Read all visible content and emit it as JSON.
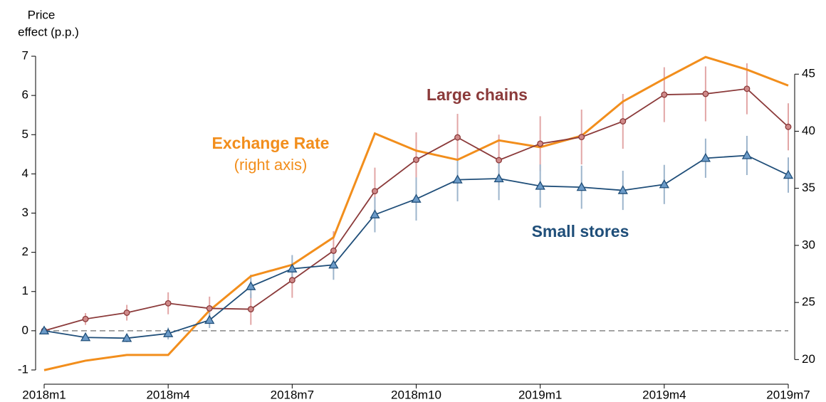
{
  "chart_data": {
    "type": "line",
    "y_label": [
      "Price",
      "effect (p.p.)"
    ],
    "categories": [
      "2018m1",
      null,
      null,
      "2018m4",
      null,
      null,
      "2018m7",
      null,
      null,
      "2018m10",
      null,
      null,
      "2019m1",
      null,
      null,
      "2019m4",
      null,
      null,
      "2019m7"
    ],
    "ylim": [
      -1.2,
      7.3
    ],
    "yticks": [
      -1,
      0,
      1,
      2,
      3,
      4,
      5,
      6,
      7
    ],
    "y2lim": [
      18.4,
      47.6
    ],
    "y2ticks": [
      20,
      25,
      30,
      35,
      40,
      45
    ],
    "refline": 0,
    "series": [
      {
        "name": "Large chains",
        "color": "#8b3a3a",
        "marker_fill": "#d08a8a",
        "error_color": "#e2a6a6",
        "marker": "circle",
        "values": [
          0,
          0.3,
          0.46,
          0.7,
          0.57,
          0.55,
          1.29,
          2.04,
          3.56,
          4.36,
          4.93,
          4.35,
          4.77,
          4.94,
          5.34,
          6.02,
          6.04,
          6.17,
          5.2
        ],
        "errors": [
          0,
          0.15,
          0.2,
          0.28,
          0.3,
          0.4,
          0.45,
          0.5,
          0.6,
          0.7,
          0.6,
          0.65,
          0.7,
          0.7,
          0.7,
          0.7,
          0.7,
          0.65,
          0.6
        ]
      },
      {
        "name": "Small stores",
        "color": "#1f4e79",
        "marker_fill": "#6c9bc8",
        "error_color": "#9db5cc",
        "marker": "triangle",
        "values": [
          0,
          -0.17,
          -0.19,
          -0.07,
          0.27,
          1.13,
          1.58,
          1.68,
          2.96,
          3.36,
          3.85,
          3.88,
          3.69,
          3.66,
          3.58,
          3.73,
          4.4,
          4.47,
          3.97
        ],
        "errors": [
          0,
          0.08,
          0.1,
          0.15,
          0.2,
          0.3,
          0.35,
          0.38,
          0.45,
          0.55,
          0.55,
          0.55,
          0.55,
          0.55,
          0.5,
          0.5,
          0.5,
          0.5,
          0.45
        ]
      },
      {
        "name": "Exchange Rate",
        "note": "(right axis)",
        "color": "#f28e1c",
        "axis": "y2",
        "values": [
          19.07,
          19.9,
          20.4,
          20.4,
          24.3,
          27.3,
          28.3,
          30.7,
          39.8,
          38.3,
          37.5,
          39.2,
          38.6,
          39.6,
          42.6,
          44.6,
          46.5,
          45.4,
          44.0
        ]
      }
    ]
  }
}
